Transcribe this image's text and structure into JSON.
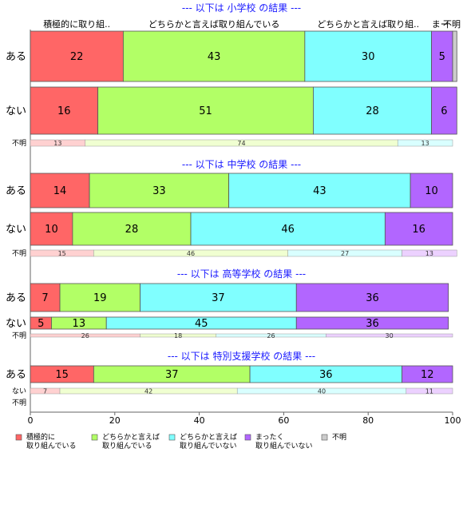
{
  "chart_data": {
    "type": "bar",
    "orientation": "horizontal",
    "stacked": true,
    "xlim": [
      0,
      100
    ],
    "x_ticks": [
      0,
      20,
      40,
      60,
      80,
      100
    ],
    "colors": {
      "series": [
        "#ff6666",
        "#b2ff66",
        "#80ffff",
        "#b266ff",
        "#cccccc"
      ],
      "title": "#1a1aff",
      "light": [
        "#ffd1d1",
        "#f0ffd1",
        "#d9ffff",
        "#ecd1ff",
        "#eeeeee"
      ]
    },
    "legend": {
      "position": "bottom-left",
      "items": [
        {
          "lines": [
            "積極的に",
            "取り組んでいる"
          ]
        },
        {
          "lines": [
            "どちらかと言えば",
            "取り組んでいる"
          ]
        },
        {
          "lines": [
            "どちらかと言えば",
            "取り組んでいない"
          ]
        },
        {
          "lines": [
            "まったく",
            "取り組んでいない"
          ]
        },
        {
          "lines": [
            "不明"
          ]
        }
      ]
    },
    "panels": [
      {
        "title": "--- 以下は 小学校 の結果 ---",
        "column_labels": [
          "積極的に取り組..",
          "どちらかと言えば取り組んでいる",
          "どちらかと言えば取り組..",
          "まー",
          "不明"
        ],
        "rows": [
          {
            "label": "ある",
            "values": [
              22,
              43,
              30,
              5,
              1
            ]
          },
          {
            "label": "ない",
            "values": [
              16,
              51,
              28,
              6,
              0
            ]
          },
          {
            "label": "不明",
            "values": [
              13,
              74,
              13,
              0,
              0
            ]
          }
        ]
      },
      {
        "title": "--- 以下は 中学校 の結果 ---",
        "rows": [
          {
            "label": "ある",
            "values": [
              14,
              33,
              43,
              10,
              0
            ]
          },
          {
            "label": "ない",
            "values": [
              10,
              28,
              46,
              16,
              0
            ]
          },
          {
            "label": "不明",
            "values": [
              15,
              46,
              27,
              13,
              0
            ]
          }
        ]
      },
      {
        "title": "--- 以下は 高等学校 の結果 ---",
        "rows": [
          {
            "label": "ある",
            "values": [
              7,
              19,
              37,
              36,
              0
            ]
          },
          {
            "label": "ない",
            "values": [
              5,
              13,
              45,
              36,
              0
            ]
          },
          {
            "label": "不明",
            "values": [
              26,
              18,
              26,
              30,
              0
            ]
          }
        ]
      },
      {
        "title": "--- 以下は 特別支援学校 の結果 ---",
        "rows": [
          {
            "label": "ある",
            "values": [
              15,
              37,
              36,
              12,
              0
            ]
          },
          {
            "label": "ない",
            "values": [
              7,
              42,
              40,
              11,
              0
            ]
          },
          {
            "label": "不明",
            "values": []
          }
        ]
      }
    ]
  }
}
